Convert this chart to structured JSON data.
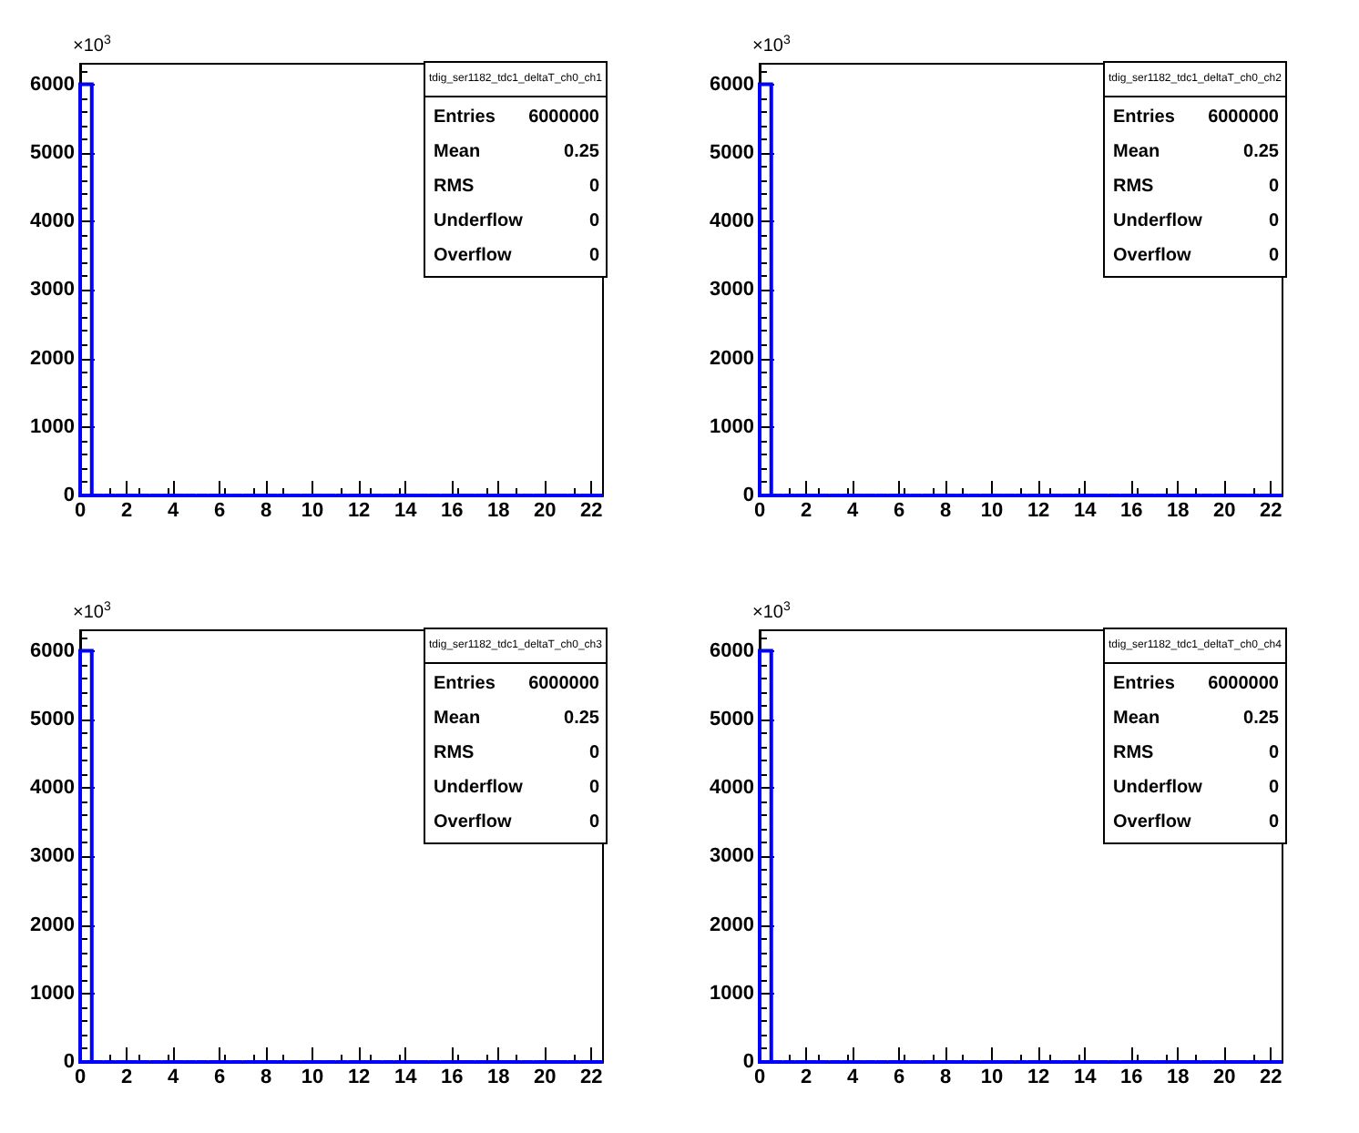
{
  "chart_data": [
    {
      "type": "histogram",
      "title": "tdig_ser1182_tdc1_deltaT_ch0_ch1",
      "color": "#0000ff",
      "grid": false,
      "bins": [
        0,
        0.5,
        1,
        1.5,
        2,
        2.5,
        3,
        3.5,
        4,
        4.5,
        5,
        5.5,
        6,
        6.5,
        7,
        7.5,
        8,
        8.5,
        9,
        9.5,
        10,
        10.5,
        11,
        11.5,
        12,
        12.5,
        13,
        13.5,
        14,
        14.5,
        15,
        15.5,
        16,
        16.5,
        17,
        17.5,
        18,
        18.5,
        19,
        19.5,
        20,
        20.5,
        21,
        21.5,
        22,
        22.5
      ],
      "values": [
        6000,
        0,
        0,
        0,
        0,
        0,
        0,
        0,
        0,
        0,
        0,
        0,
        0,
        0,
        0,
        0,
        0,
        0,
        0,
        0,
        0,
        0,
        0,
        0,
        0,
        0,
        0,
        0,
        0,
        0,
        0,
        0,
        0,
        0,
        0,
        0,
        0,
        0,
        0,
        0,
        0,
        0,
        0,
        0,
        0
      ],
      "xlim": [
        0,
        22.5
      ],
      "xticks": [
        0,
        2,
        4,
        6,
        8,
        10,
        12,
        14,
        16,
        18,
        20,
        22
      ],
      "ylim": [
        0,
        6300
      ],
      "yticks": [
        0,
        1000,
        2000,
        3000,
        4000,
        5000,
        6000
      ],
      "annotations": [
        "×10$^{3}$",
        "Entries",
        "6000000",
        "Mean",
        "0.25",
        "RMS",
        "0",
        "Underflow",
        "0",
        "Overflow",
        "0"
      ]
    },
    {
      "type": "histogram",
      "title": "tdig_ser1182_tdc1_deltaT_ch0_ch2",
      "color": "#0000ff",
      "grid": false,
      "bins": [
        0,
        0.5,
        1,
        1.5,
        2,
        2.5,
        3,
        3.5,
        4,
        4.5,
        5,
        5.5,
        6,
        6.5,
        7,
        7.5,
        8,
        8.5,
        9,
        9.5,
        10,
        10.5,
        11,
        11.5,
        12,
        12.5,
        13,
        13.5,
        14,
        14.5,
        15,
        15.5,
        16,
        16.5,
        17,
        17.5,
        18,
        18.5,
        19,
        19.5,
        20,
        20.5,
        21,
        21.5,
        22,
        22.5
      ],
      "values": [
        6000,
        0,
        0,
        0,
        0,
        0,
        0,
        0,
        0,
        0,
        0,
        0,
        0,
        0,
        0,
        0,
        0,
        0,
        0,
        0,
        0,
        0,
        0,
        0,
        0,
        0,
        0,
        0,
        0,
        0,
        0,
        0,
        0,
        0,
        0,
        0,
        0,
        0,
        0,
        0,
        0,
        0,
        0,
        0,
        0
      ],
      "xlim": [
        0,
        22.5
      ],
      "xticks": [
        0,
        2,
        4,
        6,
        8,
        10,
        12,
        14,
        16,
        18,
        20,
        22
      ],
      "ylim": [
        0,
        6300
      ],
      "yticks": [
        0,
        1000,
        2000,
        3000,
        4000,
        5000,
        6000
      ],
      "annotations": [
        "×10$^{3}$",
        "Entries",
        "6000000",
        "Mean",
        "0.25",
        "RMS",
        "0",
        "Underflow",
        "0",
        "Overflow",
        "0"
      ]
    },
    {
      "type": "histogram",
      "title": "tdig_ser1182_tdc1_deltaT_ch0_ch3",
      "color": "#0000ff",
      "grid": false,
      "bins": [
        0,
        0.5,
        1,
        1.5,
        2,
        2.5,
        3,
        3.5,
        4,
        4.5,
        5,
        5.5,
        6,
        6.5,
        7,
        7.5,
        8,
        8.5,
        9,
        9.5,
        10,
        10.5,
        11,
        11.5,
        12,
        12.5,
        13,
        13.5,
        14,
        14.5,
        15,
        15.5,
        16,
        16.5,
        17,
        17.5,
        18,
        18.5,
        19,
        19.5,
        20,
        20.5,
        21,
        21.5,
        22,
        22.5
      ],
      "values": [
        6000,
        0,
        0,
        0,
        0,
        0,
        0,
        0,
        0,
        0,
        0,
        0,
        0,
        0,
        0,
        0,
        0,
        0,
        0,
        0,
        0,
        0,
        0,
        0,
        0,
        0,
        0,
        0,
        0,
        0,
        0,
        0,
        0,
        0,
        0,
        0,
        0,
        0,
        0,
        0,
        0,
        0,
        0,
        0,
        0
      ],
      "xlim": [
        0,
        22.5
      ],
      "xticks": [
        0,
        2,
        4,
        6,
        8,
        10,
        12,
        14,
        16,
        18,
        20,
        22
      ],
      "ylim": [
        0,
        6300
      ],
      "yticks": [
        0,
        1000,
        2000,
        3000,
        4000,
        5000,
        6000
      ],
      "annotations": [
        "×10$^{3}$",
        "Entries",
        "6000000",
        "Mean",
        "0.25",
        "RMS",
        "0",
        "Underflow",
        "0",
        "Overflow",
        "0"
      ]
    },
    {
      "type": "histogram",
      "title": "tdig_ser1182_tdc1_deltaT_ch0_ch4",
      "color": "#0000ff",
      "grid": false,
      "bins": [
        0,
        0.5,
        1,
        1.5,
        2,
        2.5,
        3,
        3.5,
        4,
        4.5,
        5,
        5.5,
        6,
        6.5,
        7,
        7.5,
        8,
        8.5,
        9,
        9.5,
        10,
        10.5,
        11,
        11.5,
        12,
        12.5,
        13,
        13.5,
        14,
        14.5,
        15,
        15.5,
        16,
        16.5,
        17,
        17.5,
        18,
        18.5,
        19,
        19.5,
        20,
        20.5,
        21,
        21.5,
        22,
        22.5
      ],
      "values": [
        6000,
        0,
        0,
        0,
        0,
        0,
        0,
        0,
        0,
        0,
        0,
        0,
        0,
        0,
        0,
        0,
        0,
        0,
        0,
        0,
        0,
        0,
        0,
        0,
        0,
        0,
        0,
        0,
        0,
        0,
        0,
        0,
        0,
        0,
        0,
        0,
        0,
        0,
        0,
        0,
        0,
        0,
        0,
        0,
        0
      ],
      "xlim": [
        0,
        22.5
      ],
      "xticks": [
        0,
        2,
        4,
        6,
        8,
        10,
        12,
        14,
        16,
        18,
        20,
        22
      ],
      "ylim": [
        0,
        6300
      ],
      "yticks": [
        0,
        1000,
        2000,
        3000,
        4000,
        5000,
        6000
      ],
      "annotations": [
        "×10$^{3}$",
        "Entries",
        "6000000",
        "Mean",
        "0.25",
        "RMS",
        "0",
        "Underflow",
        "0",
        "Overflow",
        "0"
      ]
    }
  ]
}
